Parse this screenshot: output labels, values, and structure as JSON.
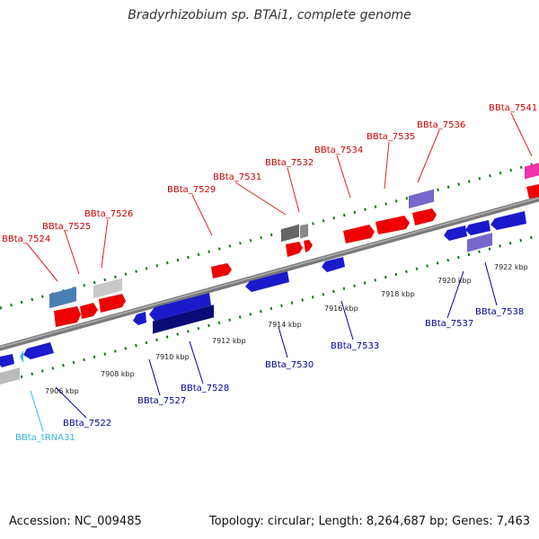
{
  "title": "Bradyrhizobium sp. BTAi1, complete genome",
  "accession": "Accession: NC_009485",
  "summary": "Topology: circular; Length: 8,264,687 bp; Genes: 7,463",
  "colors": {
    "forward_label": "#cc0000",
    "reverse_label": "#000099",
    "trna_label": "#33bbdd",
    "backbone": "#888888",
    "tick": "#117711"
  },
  "scale_labels": [
    "7906 kbp",
    "7908 kbp",
    "7910 kbp",
    "7912 kbp",
    "7914 kbp",
    "7916 kbp",
    "7918 kbp",
    "7920 kbp",
    "7922 kbp"
  ],
  "forward_genes": [
    "BBta_7524",
    "BBta_7525",
    "BBta_7526",
    "BBta_7529",
    "BBta_7531",
    "BBta_7532",
    "BBta_7534",
    "BBta_7535",
    "BBta_7536",
    "BBta_7541"
  ],
  "reverse_genes": [
    "BBta_7522",
    "BBta_7527",
    "BBta_7528",
    "BBta_7530",
    "BBta_7533",
    "BBta_7537",
    "BBta_7538"
  ],
  "rna_genes": [
    "BBta_tRNA31"
  ]
}
